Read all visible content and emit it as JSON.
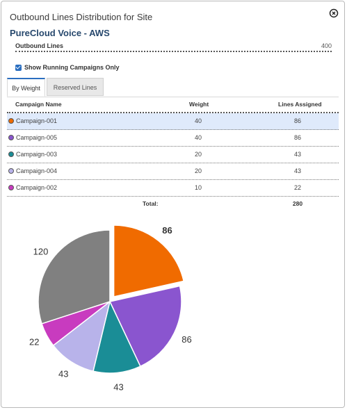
{
  "dialog": {
    "title": "Outbound Lines Distribution for Site",
    "site_name": "PureCloud Voice - AWS"
  },
  "outbound_lines": {
    "label": "Outbound Lines",
    "value": "400"
  },
  "show_running": {
    "label": "Show Running Campaigns Only",
    "checked": true
  },
  "tabs": [
    {
      "label": "By Weight",
      "active": true
    },
    {
      "label": "Reserved Lines",
      "active": false
    }
  ],
  "table": {
    "headers": {
      "name": "Campaign Name",
      "weight": "Weight",
      "lines": "Lines Assigned"
    },
    "rows": [
      {
        "name": "Campaign-001",
        "weight": "40",
        "lines": "86",
        "color": "#f06b00",
        "selected": true
      },
      {
        "name": "Campaign-005",
        "weight": "40",
        "lines": "86",
        "color": "#8a55cf",
        "selected": false
      },
      {
        "name": "Campaign-003",
        "weight": "20",
        "lines": "43",
        "color": "#1a8d96",
        "selected": false
      },
      {
        "name": "Campaign-004",
        "weight": "20",
        "lines": "43",
        "color": "#b8b3ea",
        "selected": false
      },
      {
        "name": "Campaign-002",
        "weight": "10",
        "lines": "22",
        "color": "#c83bbf",
        "selected": false
      }
    ],
    "total_label": "Total:",
    "total_value": "280"
  },
  "chart_data": {
    "type": "pie",
    "values": [
      86,
      86,
      43,
      43,
      22,
      120
    ],
    "value_labels": [
      "86",
      "86",
      "43",
      "43",
      "22",
      "120"
    ],
    "colors": [
      "#f06b00",
      "#8a55cf",
      "#1a8d96",
      "#b8b3ea",
      "#c83bbf",
      "#808080"
    ],
    "exploded_index": 0,
    "highlight_label_color": "#f06b00"
  }
}
